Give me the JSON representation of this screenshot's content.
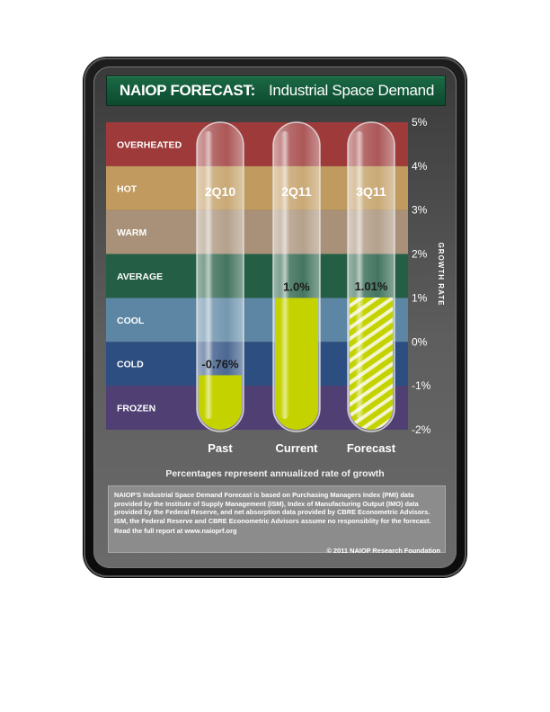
{
  "header": {
    "brand": "NAIOP FORECAST:",
    "subtitle": "Industrial Space Demand"
  },
  "chart_data": {
    "type": "bar",
    "categories": [
      "Past",
      "Current",
      "Forecast"
    ],
    "periods": [
      "2Q10",
      "2Q11",
      "3Q11"
    ],
    "values": [
      -0.76,
      1.0,
      1.01
    ],
    "value_labels": [
      "-0.76%",
      "1.0%",
      "1.01%"
    ],
    "forecast_hatched": [
      false,
      false,
      true
    ],
    "ylabel": "GROWTH RATE",
    "ylim": [
      -2,
      5
    ],
    "yticks": [
      5,
      4,
      3,
      2,
      1,
      0,
      -1,
      -2
    ],
    "ytick_labels": [
      "5%",
      "4%",
      "3%",
      "2%",
      "1%",
      "0%",
      "-1%",
      "-2%"
    ],
    "bands": [
      {
        "label": "OVERHEATED",
        "from": 4,
        "to": 5,
        "color": "#9e3a3a"
      },
      {
        "label": "HOT",
        "from": 3,
        "to": 4,
        "color": "#c09a5e"
      },
      {
        "label": "WARM",
        "from": 2,
        "to": 3,
        "color": "#a89178"
      },
      {
        "label": "AVERAGE",
        "from": 1,
        "to": 2,
        "color": "#245e45"
      },
      {
        "label": "COOL",
        "from": 0,
        "to": 1,
        "color": "#5c86a3"
      },
      {
        "label": "COLD",
        "from": -1,
        "to": 0,
        "color": "#2c4e80"
      },
      {
        "label": "FROZEN",
        "from": -2,
        "to": -1,
        "color": "#4f3f72"
      }
    ],
    "fill_color": "#c4d300"
  },
  "caption": "Percentages represent annualized rate of growth",
  "note": {
    "body": "NAIOP'S Industrial Space Demand Forecast is based on Purchasing Managers Index (PMI) data provided by the Institute of Supply Management (ISM), Index of Manufacturing Output (IMO) data provided by the Federal Reserve, and net absorption data provided by CBRE Econometric Advisors. ISM, the Federal Reserve and CBRE Econometric Advisors assume no responsiblity for the forecast.",
    "link": "Read the full report at www.naioprf.org"
  },
  "copyright": "© 2011 NAIOP Research Foundation"
}
